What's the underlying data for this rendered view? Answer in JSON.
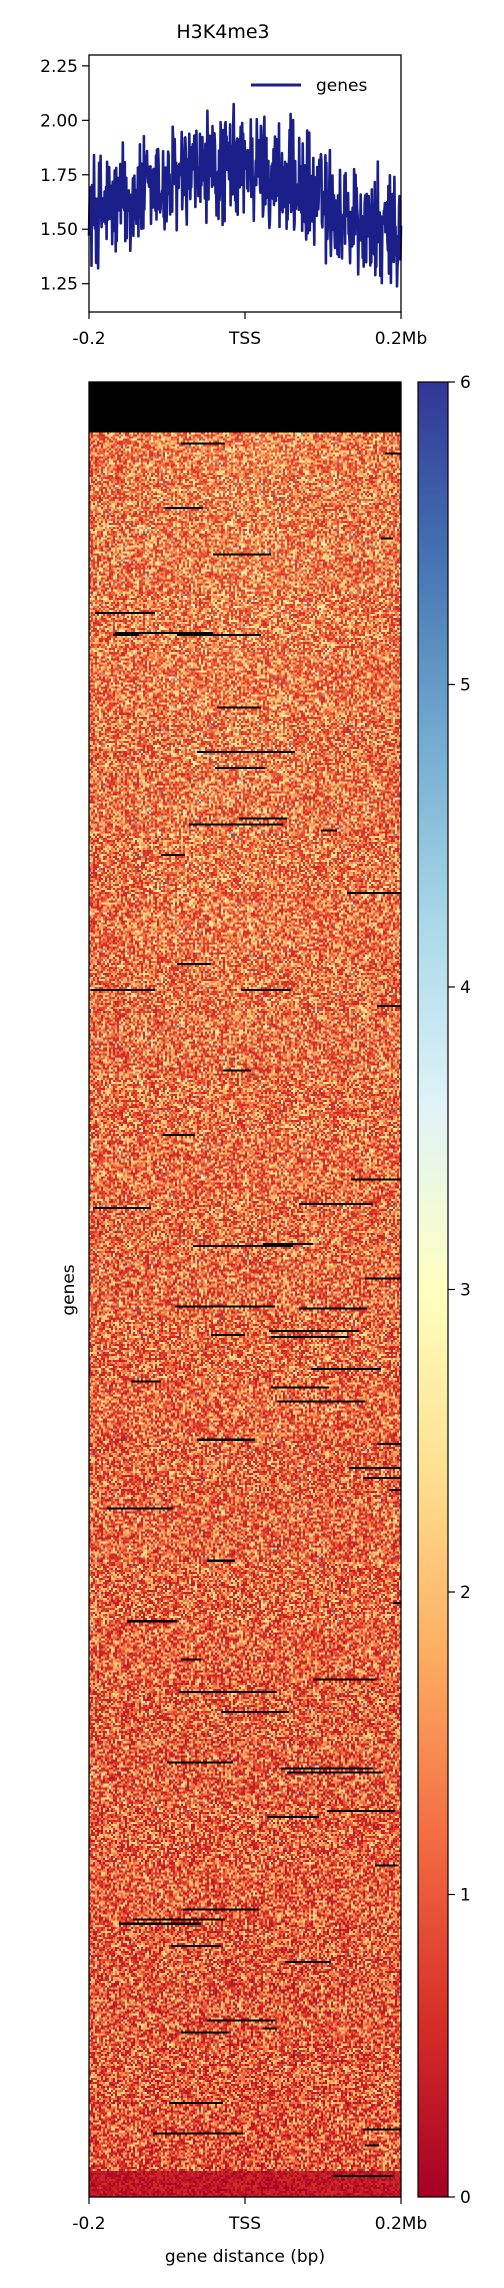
{
  "chart_data": [
    {
      "type": "line",
      "title": "H3K4me3",
      "xlabel": "",
      "ylabel": "",
      "x_tick_labels": [
        "-0.2",
        "TSS",
        "0.2Mb"
      ],
      "y_ticks": [
        "1.25",
        "1.50",
        "1.75",
        "2.00",
        "2.25"
      ],
      "ylim": [
        1.12,
        2.3
      ],
      "legend": {
        "placement": "top-right",
        "entries": [
          "genes"
        ]
      },
      "series": [
        {
          "name": "genes",
          "color": "#1a1f8a",
          "profile_x": [
            -0.2,
            -0.15,
            -0.1,
            -0.05,
            0.0,
            0.05,
            0.1,
            0.15,
            0.2
          ],
          "profile_mean": [
            1.58,
            1.64,
            1.7,
            1.76,
            1.8,
            1.73,
            1.62,
            1.52,
            1.45
          ],
          "profile_noise": 0.22,
          "profile_min": 1.17,
          "profile_max": 2.1
        }
      ]
    },
    {
      "type": "heatmap",
      "ylabel": "genes",
      "xlabel": "gene distance (bp)",
      "x_tick_labels": [
        "-0.2",
        "TSS",
        "0.2Mb"
      ],
      "colorbar": {
        "range": [
          0,
          6
        ],
        "ticks": [
          "0",
          "1",
          "2",
          "3",
          "4",
          "5",
          "6"
        ],
        "colormap": "RdYlBu",
        "stops": [
          "#a50026",
          "#d73027",
          "#f46d43",
          "#fdae61",
          "#fee090",
          "#ffffbf",
          "#e0f3f8",
          "#abd9e9",
          "#74add1",
          "#4575b4",
          "#313695"
        ]
      },
      "typical_value_range": [
        0.3,
        2.5
      ],
      "missing_color": "#000000"
    }
  ]
}
